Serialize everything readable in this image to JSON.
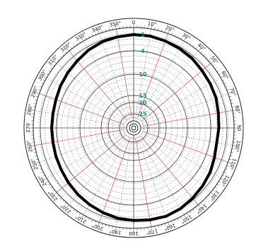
{
  "chart_data": {
    "type": "polar",
    "angle_labels": [
      "0",
      "10°",
      "20°",
      "30°",
      "40°",
      "50°",
      "60°",
      "70°",
      "80°",
      "90",
      "100°",
      "110°",
      "120°",
      "130°",
      "140°",
      "150°",
      "160°",
      "170°",
      "180",
      "190°",
      "200°",
      "210°",
      "220°",
      "230°",
      "240°",
      "250°",
      "260°",
      "270",
      "280°",
      "290°",
      "300°",
      "310°",
      "320°",
      "330°",
      "340°",
      "350°"
    ],
    "angle_step_deg": 10,
    "zero_direction": "top",
    "clockwise": true,
    "ring_labels": [
      {
        "value": 2,
        "label": "2"
      },
      {
        "value": 4,
        "label": "4"
      },
      {
        "value": 10,
        "label": "10"
      },
      {
        "value": 15,
        "label": "15"
      },
      {
        "value": 20,
        "label": "20"
      },
      {
        "value": 25,
        "label": "25"
      }
    ],
    "series": [
      {
        "style": "thick-black-line",
        "theta": [
          0,
          10,
          20,
          30,
          40,
          50,
          60,
          70,
          80,
          90,
          100,
          110,
          120,
          130,
          140,
          150,
          160,
          170,
          180,
          190,
          200,
          210,
          220,
          230,
          240,
          250,
          260,
          270,
          280,
          290,
          300,
          310,
          320,
          330,
          340,
          350,
          360
        ],
        "r": [
          2.0,
          2.0,
          2.1,
          2.2,
          2.3,
          2.5,
          2.6,
          2.7,
          2.9,
          3.0,
          3.1,
          2.9,
          2.6,
          2.4,
          2.2,
          2.0,
          1.9,
          2.0,
          2.1,
          2.2,
          2.4,
          2.6,
          2.8,
          3.0,
          3.2,
          3.3,
          3.4,
          3.4,
          3.4,
          3.3,
          3.1,
          2.9,
          2.7,
          2.4,
          2.2,
          2.1,
          2.0
        ]
      }
    ],
    "grid": true,
    "colors": {
      "ring_label": "#1a8f8f",
      "accent_radial": "#d23a3a",
      "grid": "#555555",
      "curve": "#000000"
    }
  }
}
